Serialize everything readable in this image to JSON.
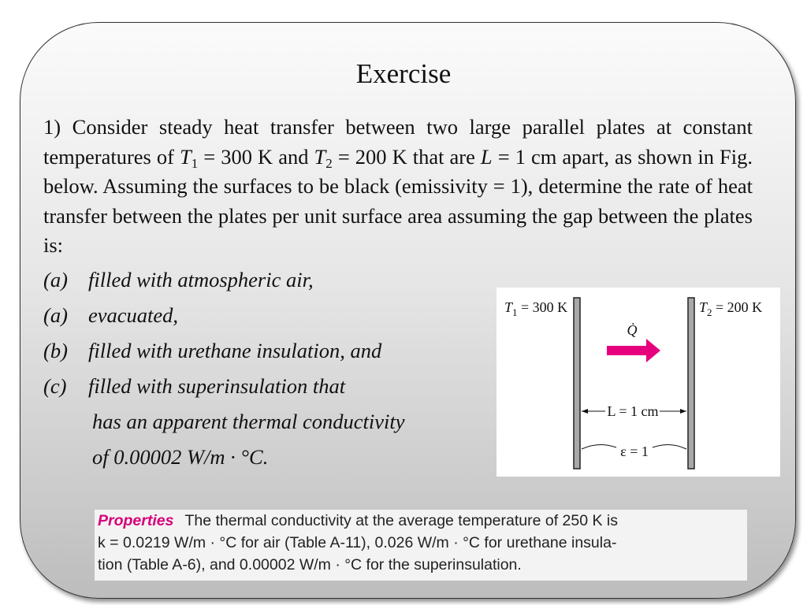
{
  "title": "Exercise",
  "problem": {
    "runs": [
      "1) Consider steady heat transfer between two large parallel plates at constant temperatures of ",
      "T",
      "1",
      " = 300 K and ",
      "T",
      "2",
      " = 200 K that are ",
      "L",
      " = 1 cm apart, as shown in Fig. below. Assuming the surfaces to be black (emissivity  = 1), determine the rate of heat transfer between the plates per unit surface area assuming the gap between the plates is:"
    ]
  },
  "items": [
    {
      "label": "(a)",
      "lines": [
        "filled with atmospheric air,"
      ]
    },
    {
      "label": "(a)",
      "lines": [
        "evacuated,"
      ]
    },
    {
      "label": "(b)",
      "lines": [
        "filled with urethane insulation, and"
      ]
    },
    {
      "label": "(c)",
      "lines": [
        "filled with superinsulation that",
        "has an apparent thermal conductivity",
        "of 0.00002 W/m · °C."
      ]
    }
  ],
  "figure": {
    "t1": [
      "T",
      "1",
      " = 300 K"
    ],
    "t2": [
      "T",
      "2",
      " = 200 K"
    ],
    "heat": "Q̇",
    "gap": "L = 1 cm",
    "emissivity": "ε = 1"
  },
  "properties": {
    "heading": "Properties",
    "lines": [
      "The thermal conductivity at the average temperature of 250 K is",
      "k = 0.0219 W/m · °C for air (Table A-11), 0.026 W/m · °C for urethane insula-",
      "tion (Table A-6), and 0.00002 W/m · °C for the superinsulation."
    ]
  }
}
